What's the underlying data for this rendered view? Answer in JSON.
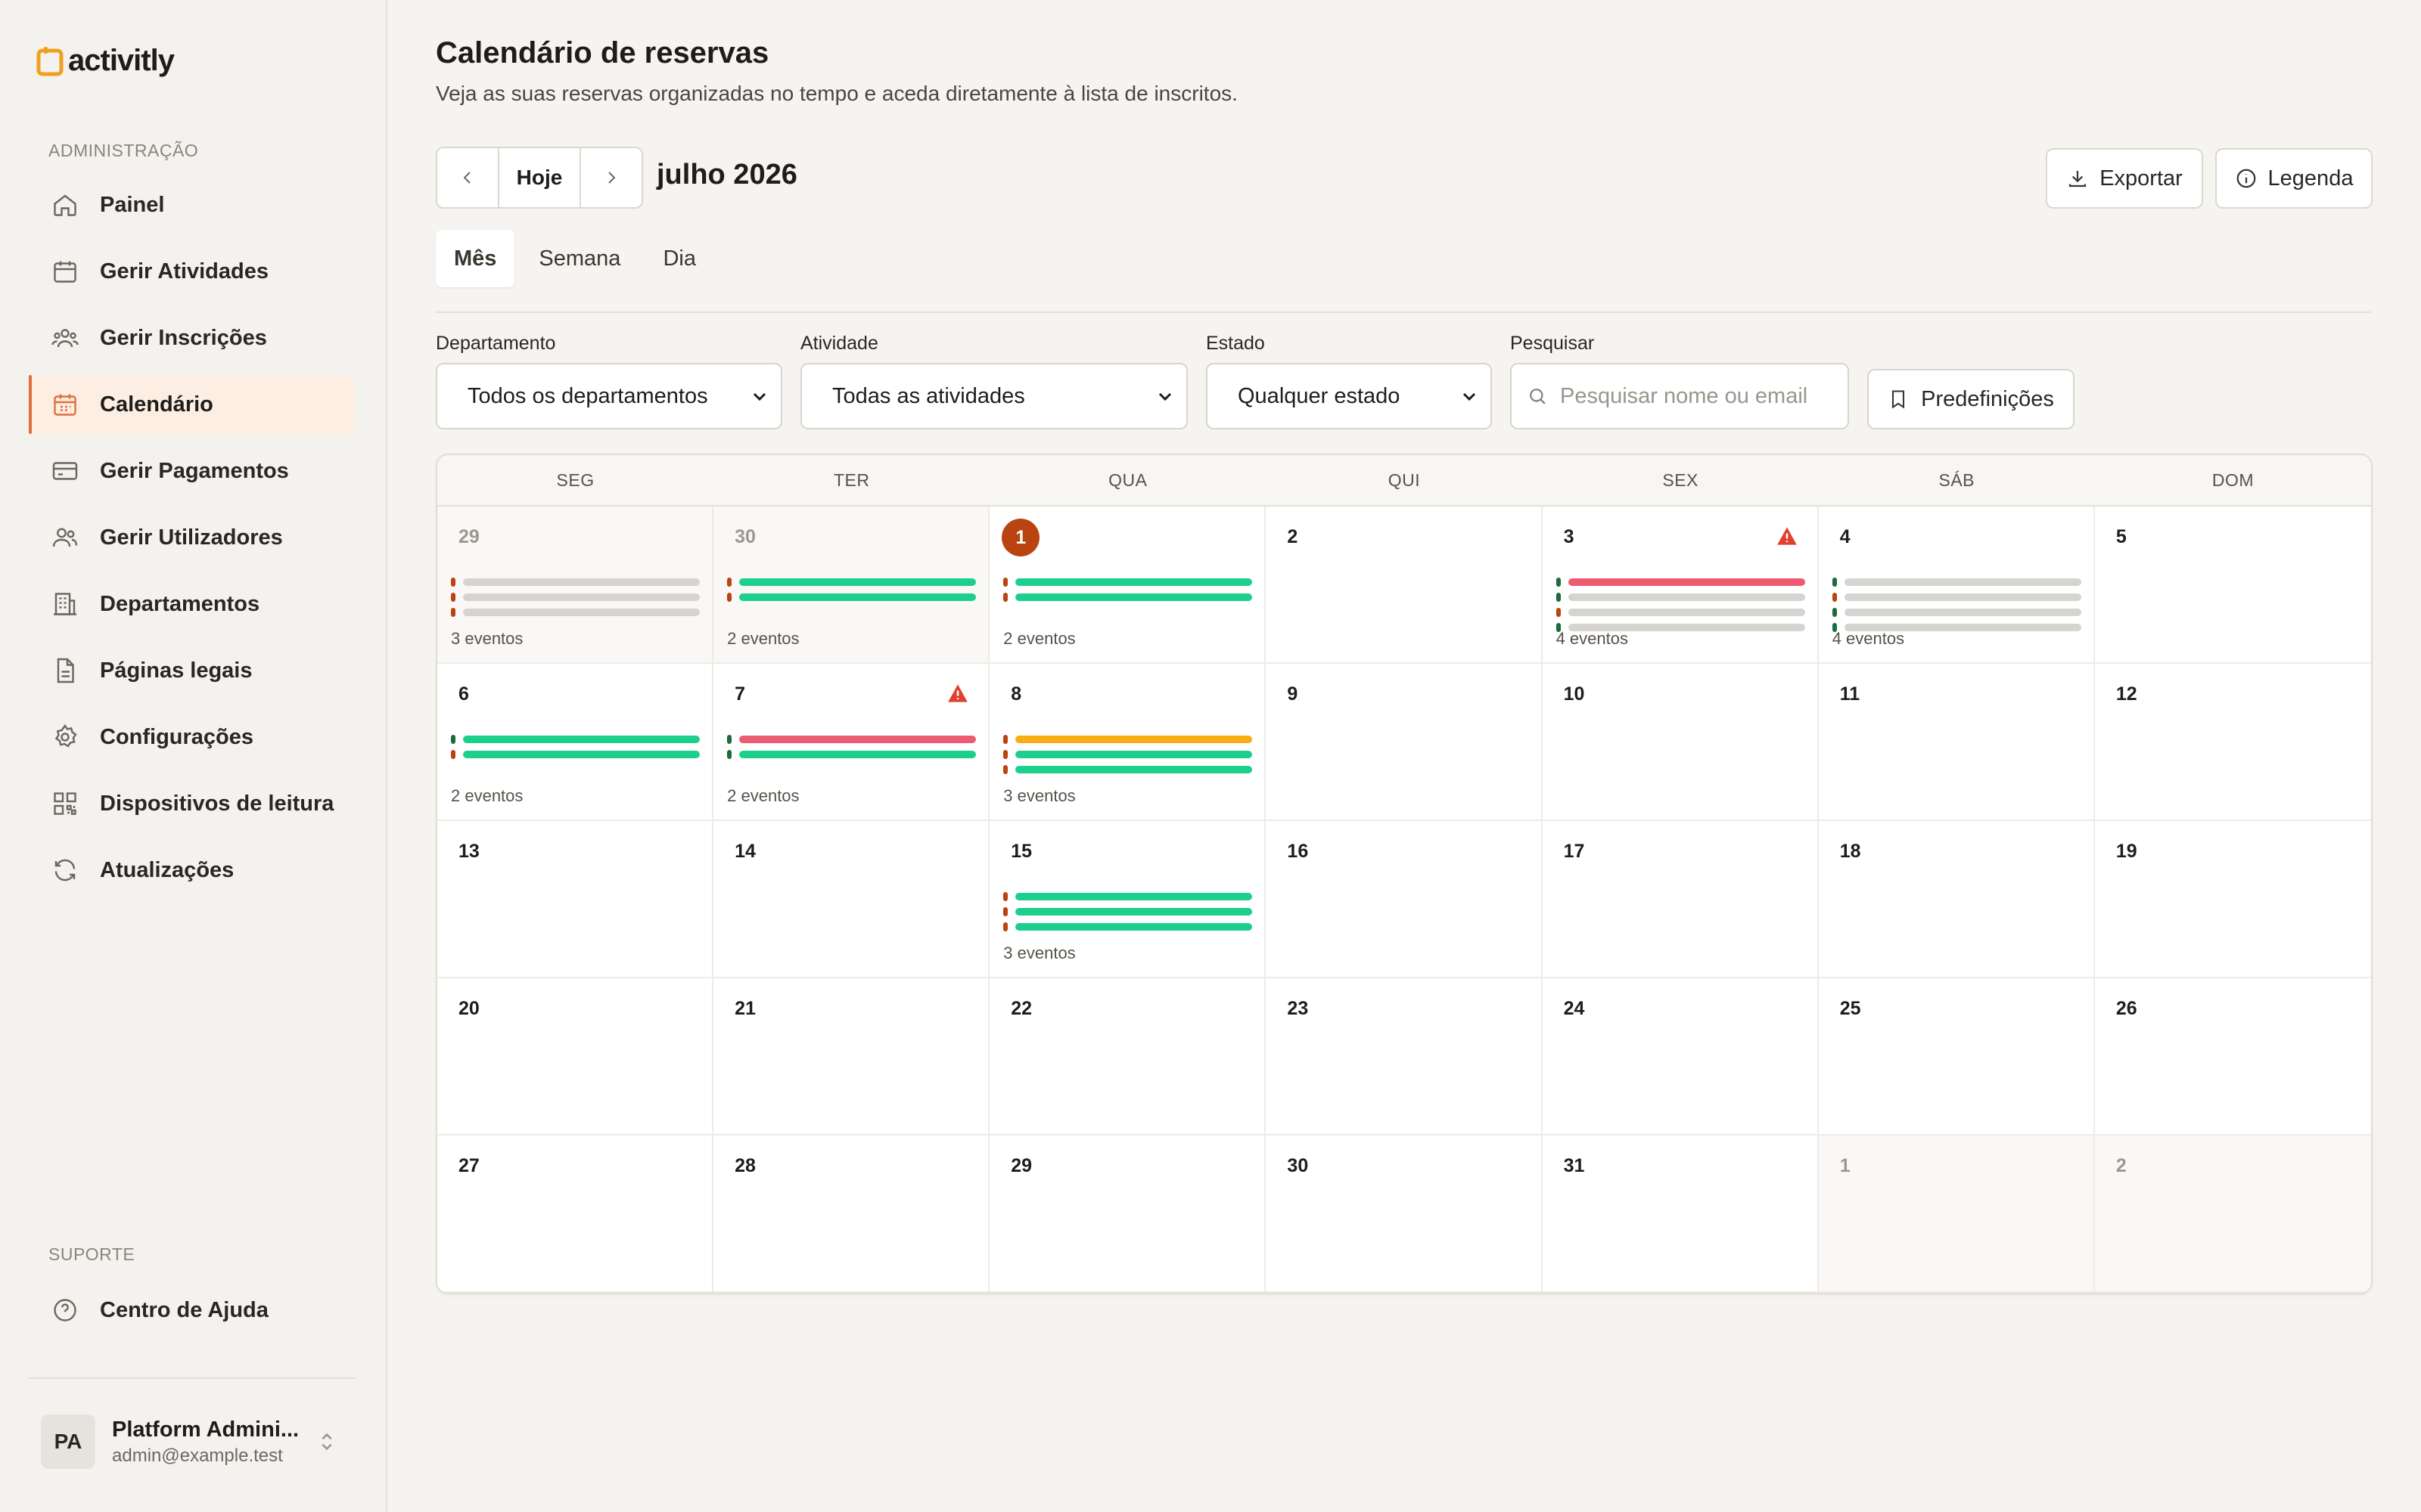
{
  "app": {
    "logo_text": "activitly"
  },
  "sidebar": {
    "admin_label": "ADMINISTRAÇÃO",
    "items": [
      {
        "label": "Painel",
        "icon": "home-icon"
      },
      {
        "label": "Gerir Atividades",
        "icon": "calendar-icon"
      },
      {
        "label": "Gerir Inscrições",
        "icon": "users-group-icon"
      },
      {
        "label": "Calendário",
        "icon": "calendar-icon",
        "active": true
      },
      {
        "label": "Gerir Pagamentos",
        "icon": "credit-card-icon"
      },
      {
        "label": "Gerir Utilizadores",
        "icon": "users-icon"
      },
      {
        "label": "Departamentos",
        "icon": "building-icon"
      },
      {
        "label": "Páginas legais",
        "icon": "document-icon"
      },
      {
        "label": "Configurações",
        "icon": "gear-icon"
      },
      {
        "label": "Dispositivos de leitura",
        "icon": "qr-code-icon"
      },
      {
        "label": "Atualizações",
        "icon": "refresh-icon"
      }
    ],
    "support_label": "SUPORTE",
    "support_items": [
      {
        "label": "Centro de Ajuda",
        "icon": "help-circle-icon"
      }
    ],
    "user": {
      "initials": "PA",
      "name": "Platform Admini...",
      "email": "admin@example.test"
    }
  },
  "header": {
    "title": "Calendário de reservas",
    "subtitle": "Veja as suas reservas organizadas no tempo e aceda diretamente à lista de inscritos.",
    "today_label": "Hoje",
    "month_label": "julho 2026",
    "export_label": "Exportar",
    "legend_label": "Legenda"
  },
  "view_tabs": [
    {
      "label": "Mês",
      "active": true
    },
    {
      "label": "Semana"
    },
    {
      "label": "Dia"
    }
  ],
  "filters": {
    "department": {
      "label": "Departamento",
      "value": "Todos os departamentos"
    },
    "activity": {
      "label": "Atividade",
      "value": "Todas as atividades"
    },
    "status": {
      "label": "Estado",
      "value": "Qualquer estado"
    },
    "search": {
      "label": "Pesquisar",
      "placeholder": "Pesquisar nome ou email"
    },
    "presets_label": "Predefinições"
  },
  "colors": {
    "accent": "#e0703a",
    "today": "#b9440f",
    "green": "#1ccf8c",
    "gray": "#d6d4d1",
    "red": "#ec5b71",
    "amber": "#f6ae12",
    "dot_orange": "#b9440f",
    "dot_green": "#1b6b3c",
    "warning": "#e0412e"
  },
  "calendar": {
    "weekdays": [
      "SEG",
      "TER",
      "QUA",
      "QUI",
      "SEX",
      "SÁB",
      "DOM"
    ],
    "days": [
      {
        "d": "29",
        "outside": true,
        "count": "3 eventos",
        "events": [
          [
            "dot_orange",
            "gray"
          ],
          [
            "dot_orange",
            "gray"
          ],
          [
            "dot_orange",
            "gray"
          ]
        ]
      },
      {
        "d": "30",
        "outside": true,
        "count": "2 eventos",
        "events": [
          [
            "dot_orange",
            "green"
          ],
          [
            "dot_orange",
            "green"
          ]
        ]
      },
      {
        "d": "1",
        "today": true,
        "count": "2 eventos",
        "events": [
          [
            "dot_orange",
            "green"
          ],
          [
            "dot_orange",
            "green"
          ]
        ]
      },
      {
        "d": "2"
      },
      {
        "d": "3",
        "warning": true,
        "count": "4 eventos",
        "events": [
          [
            "dot_green",
            "red"
          ],
          [
            "dot_green",
            "gray"
          ],
          [
            "dot_orange",
            "gray"
          ],
          [
            "dot_green",
            "gray"
          ]
        ]
      },
      {
        "d": "4",
        "count": "4 eventos",
        "events": [
          [
            "dot_green",
            "gray"
          ],
          [
            "dot_orange",
            "gray"
          ],
          [
            "dot_green",
            "gray"
          ],
          [
            "dot_green",
            "gray"
          ]
        ]
      },
      {
        "d": "5"
      },
      {
        "d": "6",
        "count": "2 eventos",
        "events": [
          [
            "dot_green",
            "green"
          ],
          [
            "dot_orange",
            "green"
          ]
        ]
      },
      {
        "d": "7",
        "warning": true,
        "count": "2 eventos",
        "events": [
          [
            "dot_green",
            "red"
          ],
          [
            "dot_green",
            "green"
          ]
        ]
      },
      {
        "d": "8",
        "count": "3 eventos",
        "events": [
          [
            "dot_orange",
            "amber"
          ],
          [
            "dot_orange",
            "green"
          ],
          [
            "dot_orange",
            "green"
          ]
        ]
      },
      {
        "d": "9"
      },
      {
        "d": "10"
      },
      {
        "d": "11"
      },
      {
        "d": "12"
      },
      {
        "d": "13"
      },
      {
        "d": "14"
      },
      {
        "d": "15",
        "count": "3 eventos",
        "events": [
          [
            "dot_orange",
            "green"
          ],
          [
            "dot_orange",
            "green"
          ],
          [
            "dot_orange",
            "green"
          ]
        ]
      },
      {
        "d": "16"
      },
      {
        "d": "17"
      },
      {
        "d": "18"
      },
      {
        "d": "19"
      },
      {
        "d": "20"
      },
      {
        "d": "21"
      },
      {
        "d": "22"
      },
      {
        "d": "23"
      },
      {
        "d": "24"
      },
      {
        "d": "25"
      },
      {
        "d": "26"
      },
      {
        "d": "27"
      },
      {
        "d": "28"
      },
      {
        "d": "29"
      },
      {
        "d": "30"
      },
      {
        "d": "31"
      },
      {
        "d": "1",
        "outside": true
      },
      {
        "d": "2",
        "outside": true
      }
    ]
  }
}
